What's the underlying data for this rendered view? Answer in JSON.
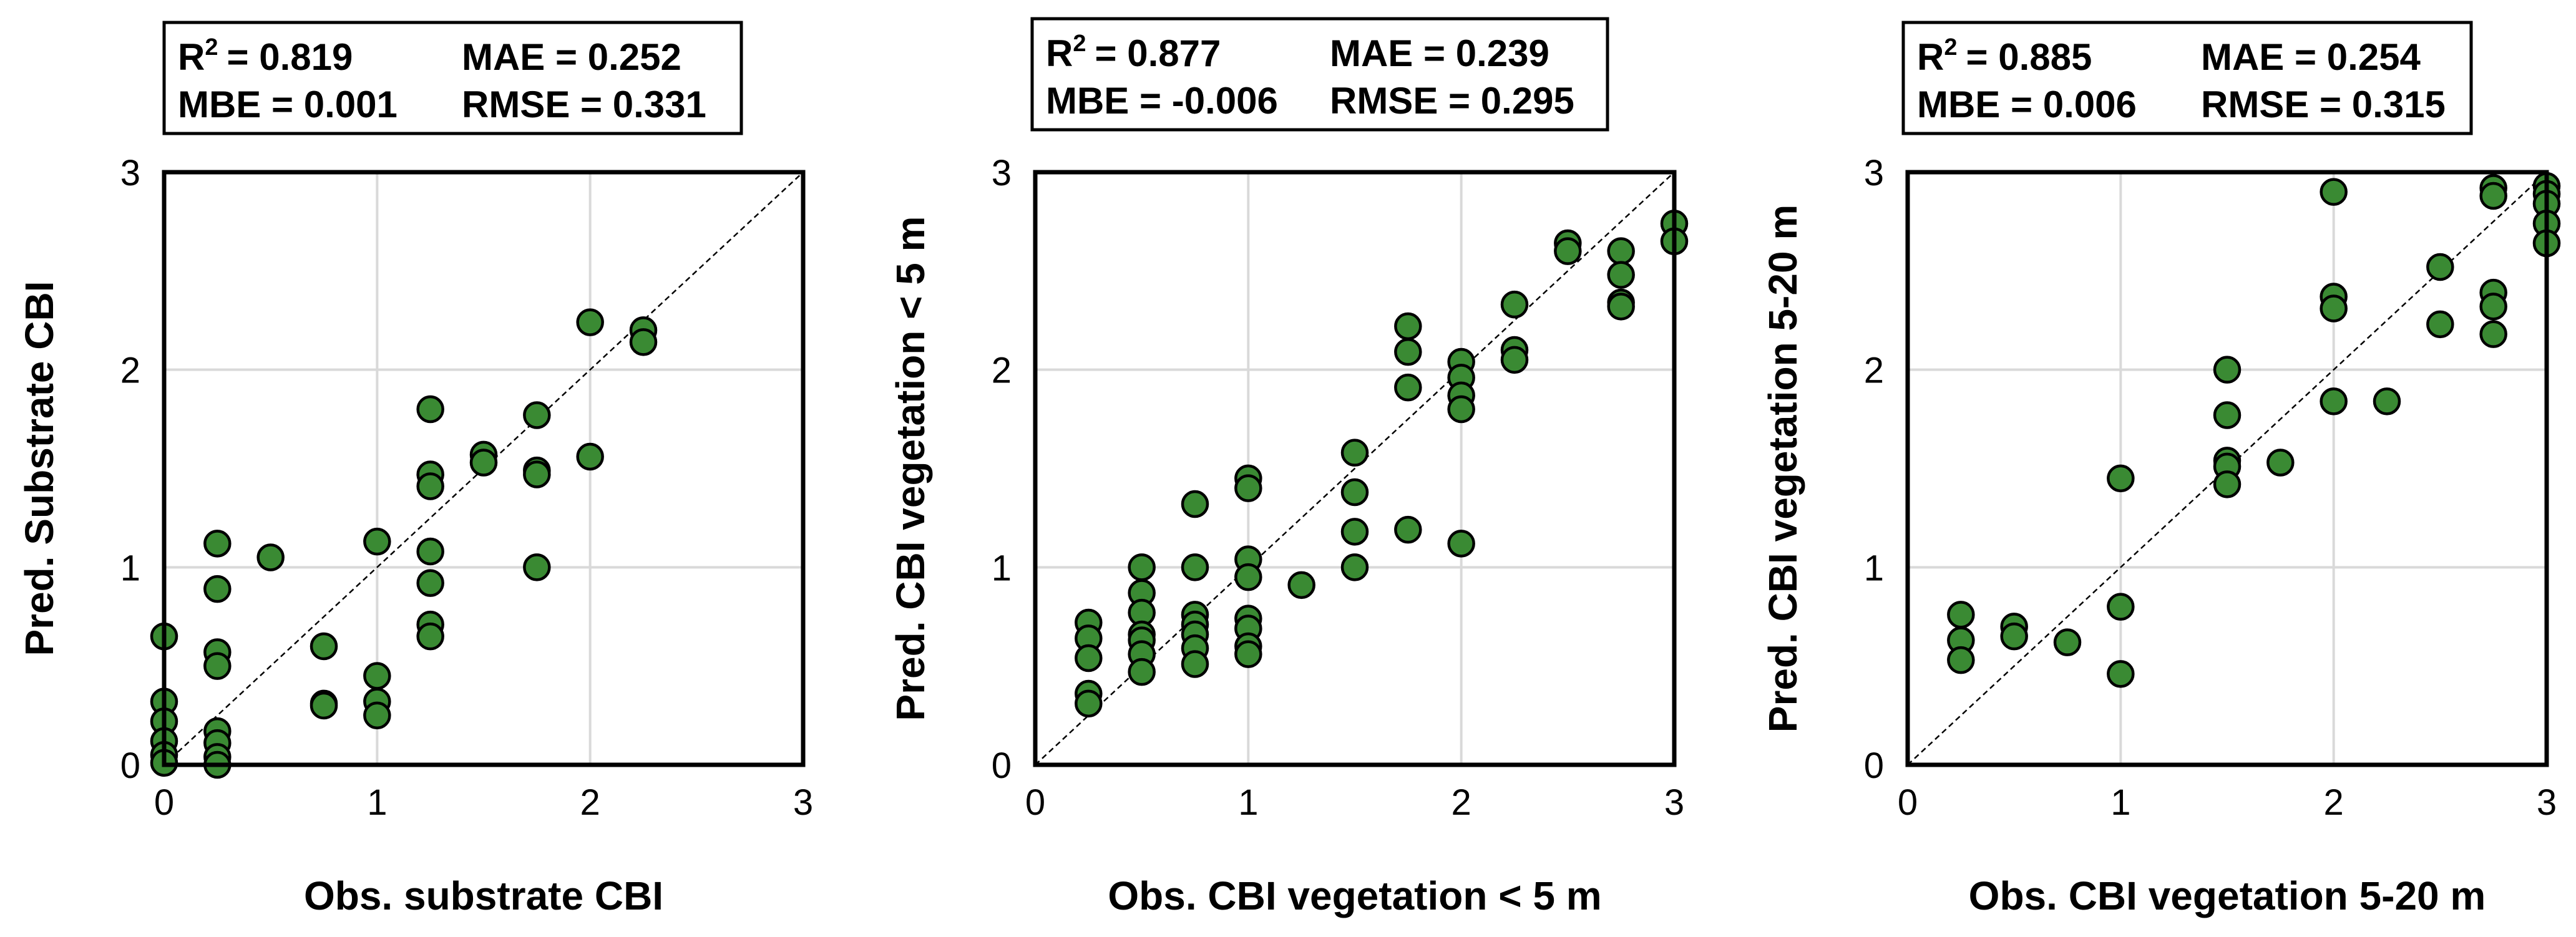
{
  "chart_data": [
    {
      "type": "scatter",
      "xlabel": "Obs. substrate CBI",
      "ylabel": "Pred. Substrate CBI",
      "xlim": [
        0,
        3
      ],
      "ylim": [
        0,
        3
      ],
      "xticks": [
        "0",
        "1",
        "2",
        "3"
      ],
      "yticks": [
        "0",
        "1",
        "2",
        "3"
      ],
      "grid": true,
      "reference_line": "1:1",
      "marker_color": "#3a8a33",
      "stats": {
        "r2_label": "R",
        "r2_sup": "2",
        "r2_value": "= 0.819",
        "mae": "MAE = 0.252",
        "mbe": "MBE = 0.001",
        "rmse": "RMSE = 0.331"
      },
      "points": [
        [
          0,
          0.65
        ],
        [
          0,
          0.32
        ],
        [
          0,
          0.22
        ],
        [
          0,
          0.12
        ],
        [
          0,
          0.05
        ],
        [
          0,
          0.01
        ],
        [
          0.25,
          1.12
        ],
        [
          0.25,
          0.89
        ],
        [
          0.25,
          0.57
        ],
        [
          0.25,
          0.5
        ],
        [
          0.25,
          0.17
        ],
        [
          0.25,
          0.11
        ],
        [
          0.25,
          0.04
        ],
        [
          0.25,
          0.0
        ],
        [
          0.5,
          1.05
        ],
        [
          0.75,
          0.6
        ],
        [
          0.75,
          0.31
        ],
        [
          0.75,
          0.3
        ],
        [
          1,
          1.13
        ],
        [
          1,
          0.45
        ],
        [
          1,
          0.32
        ],
        [
          1,
          0.25
        ],
        [
          1.25,
          1.8
        ],
        [
          1.25,
          1.47
        ],
        [
          1.25,
          1.41
        ],
        [
          1.25,
          1.08
        ],
        [
          1.25,
          0.92
        ],
        [
          1.25,
          0.71
        ],
        [
          1.25,
          0.65
        ],
        [
          1.5,
          1.57
        ],
        [
          1.5,
          1.53
        ],
        [
          1.75,
          1.77
        ],
        [
          1.75,
          1.49
        ],
        [
          1.75,
          1.47
        ],
        [
          1.75,
          1.0
        ],
        [
          2,
          2.24
        ],
        [
          2,
          1.56
        ],
        [
          2.25,
          2.2
        ],
        [
          2.25,
          2.14
        ]
      ]
    },
    {
      "type": "scatter",
      "xlabel": "Obs. CBI vegetation < 5 m",
      "ylabel": "Pred. CBI vegetation < 5 m",
      "xlim": [
        0,
        3
      ],
      "ylim": [
        0,
        3
      ],
      "xticks": [
        "0",
        "1",
        "2",
        "3"
      ],
      "yticks": [
        "0",
        "1",
        "2",
        "3"
      ],
      "grid": true,
      "reference_line": "1:1",
      "marker_color": "#3a8a33",
      "stats": {
        "r2_label": "R",
        "r2_sup": "2",
        "r2_value": "= 0.877",
        "mae": "MAE = 0.239",
        "mbe": "MBE = -0.006",
        "rmse": "RMSE = 0.295"
      },
      "points": [
        [
          0.25,
          0.72
        ],
        [
          0.25,
          0.64
        ],
        [
          0.25,
          0.54
        ],
        [
          0.25,
          0.36
        ],
        [
          0.25,
          0.31
        ],
        [
          0.5,
          1.0
        ],
        [
          0.5,
          0.87
        ],
        [
          0.5,
          0.77
        ],
        [
          0.5,
          0.66
        ],
        [
          0.5,
          0.63
        ],
        [
          0.5,
          0.56
        ],
        [
          0.5,
          0.47
        ],
        [
          0.75,
          1.32
        ],
        [
          0.75,
          1.0
        ],
        [
          0.75,
          0.76
        ],
        [
          0.75,
          0.71
        ],
        [
          0.75,
          0.66
        ],
        [
          0.75,
          0.59
        ],
        [
          0.75,
          0.51
        ],
        [
          1,
          1.45
        ],
        [
          1,
          1.4
        ],
        [
          1,
          1.04
        ],
        [
          1,
          0.95
        ],
        [
          1,
          0.74
        ],
        [
          1,
          0.69
        ],
        [
          1,
          0.6
        ],
        [
          1,
          0.56
        ],
        [
          1.25,
          0.91
        ],
        [
          1.5,
          1.58
        ],
        [
          1.5,
          1.38
        ],
        [
          1.5,
          1.18
        ],
        [
          1.5,
          1.0
        ],
        [
          1.75,
          2.22
        ],
        [
          1.75,
          2.09
        ],
        [
          1.75,
          1.91
        ],
        [
          1.75,
          1.19
        ],
        [
          2,
          2.04
        ],
        [
          2,
          1.96
        ],
        [
          2,
          1.87
        ],
        [
          2,
          1.8
        ],
        [
          2,
          1.12
        ],
        [
          2.25,
          2.33
        ],
        [
          2.25,
          2.1
        ],
        [
          2.25,
          2.05
        ],
        [
          2.5,
          2.64
        ],
        [
          2.5,
          2.6
        ],
        [
          2.75,
          2.6
        ],
        [
          2.75,
          2.48
        ],
        [
          2.75,
          2.34
        ],
        [
          2.75,
          2.32
        ],
        [
          3,
          2.74
        ],
        [
          3,
          2.65
        ]
      ]
    },
    {
      "type": "scatter",
      "xlabel": "Obs. CBI vegetation 5-20 m",
      "ylabel": "Pred. CBI vegetation 5-20 m",
      "xlim": [
        0,
        3
      ],
      "ylim": [
        0,
        3
      ],
      "xticks": [
        "0",
        "1",
        "2",
        "3"
      ],
      "yticks": [
        "0",
        "1",
        "2",
        "3"
      ],
      "grid": true,
      "reference_line": "1:1",
      "marker_color": "#3a8a33",
      "stats": {
        "r2_label": "R",
        "r2_sup": "2",
        "r2_value": "= 0.885",
        "mae": "MAE = 0.254",
        "mbe": "MBE = 0.006",
        "rmse": "RMSE = 0.315"
      },
      "points": [
        [
          0.25,
          0.76
        ],
        [
          0.25,
          0.63
        ],
        [
          0.25,
          0.53
        ],
        [
          0.5,
          0.7
        ],
        [
          0.5,
          0.65
        ],
        [
          0.75,
          0.62
        ],
        [
          1,
          1.45
        ],
        [
          1,
          0.8
        ],
        [
          1,
          0.46
        ],
        [
          1.5,
          2.0
        ],
        [
          1.5,
          1.77
        ],
        [
          1.5,
          1.54
        ],
        [
          1.5,
          1.51
        ],
        [
          1.5,
          1.42
        ],
        [
          1.75,
          1.53
        ],
        [
          2,
          2.9
        ],
        [
          2,
          2.37
        ],
        [
          2,
          2.31
        ],
        [
          2,
          1.84
        ],
        [
          2.25,
          1.84
        ],
        [
          2.5,
          2.52
        ],
        [
          2.5,
          2.23
        ],
        [
          2.75,
          2.92
        ],
        [
          2.75,
          2.88
        ],
        [
          2.75,
          2.39
        ],
        [
          2.75,
          2.32
        ],
        [
          2.75,
          2.18
        ],
        [
          3,
          2.93
        ],
        [
          3,
          2.89
        ],
        [
          3,
          2.84
        ],
        [
          3,
          2.74
        ],
        [
          3,
          2.64
        ]
      ]
    }
  ]
}
